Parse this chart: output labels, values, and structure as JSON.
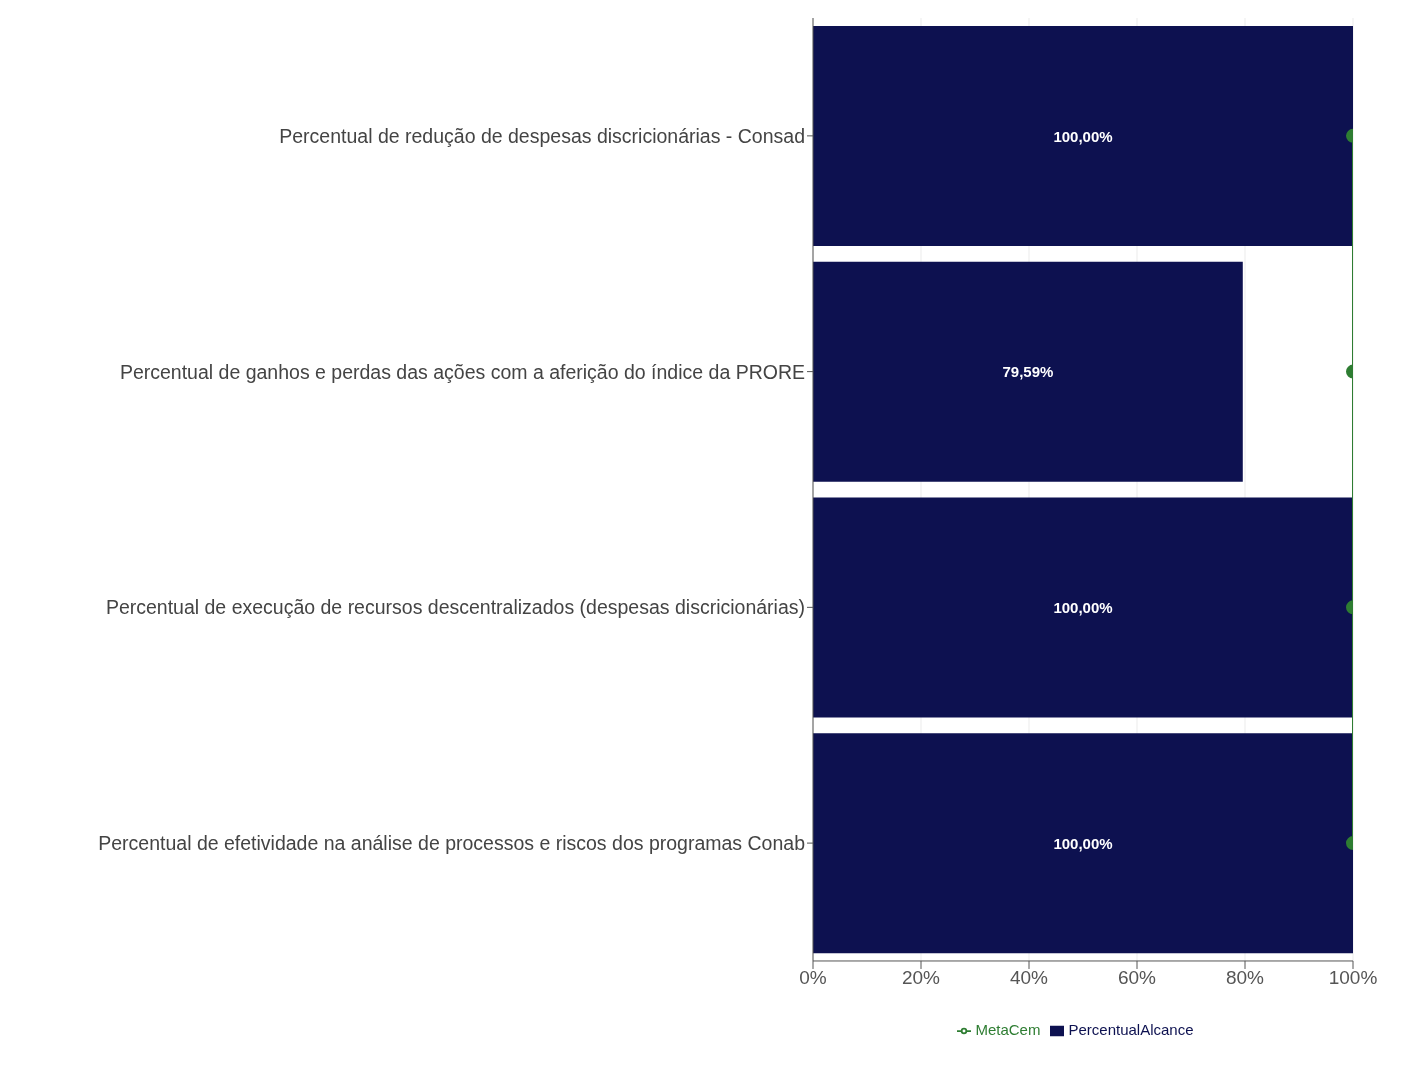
{
  "chart_data": {
    "type": "bar",
    "orientation": "horizontal",
    "categories": [
      "Percentual de redução de despesas discricionárias - Consad",
      "Percentual de ganhos e perdas das ações com a aferição do índice da PRORE",
      "Percentual de execução de recursos descentralizados (despesas discricionárias)",
      "Percentual de efetividade na análise de processos e riscos dos programas Conab"
    ],
    "series": [
      {
        "name": "PercentualAlcance",
        "color": "#0d1150",
        "values": [
          100,
          79.59,
          100,
          100
        ],
        "value_labels": [
          "100,00%",
          "79,59%",
          "100,00%",
          "100,00%"
        ]
      },
      {
        "name": "MetaCem",
        "type": "line",
        "color": "#2e7d32",
        "values": [
          100,
          100,
          100,
          100
        ],
        "marker": "circle"
      }
    ],
    "xlim": [
      0,
      100
    ],
    "xticks": [
      {
        "value": 0,
        "label": "0%"
      },
      {
        "value": 20,
        "label": "20%"
      },
      {
        "value": 40,
        "label": "40%"
      },
      {
        "value": 60,
        "label": "60%"
      },
      {
        "value": 80,
        "label": "80%"
      },
      {
        "value": 100,
        "label": "100%"
      }
    ],
    "grid": "x",
    "legend": "bottom"
  }
}
